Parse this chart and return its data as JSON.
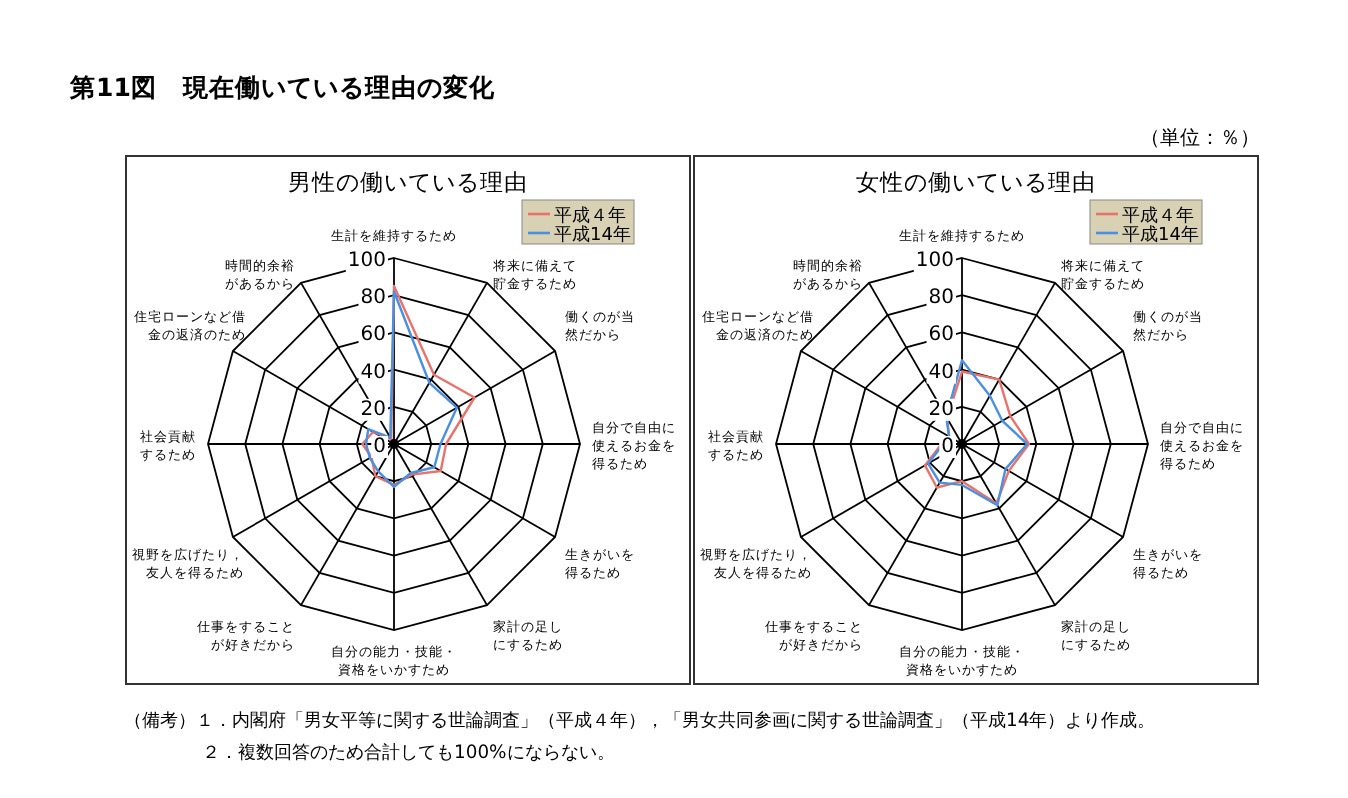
{
  "chart_data": [
    {
      "type": "radar",
      "title": "男性の働いている理由",
      "annotations": [
        "第11図　現在働いている理由の変化",
        "（単位：％）"
      ],
      "categories": [
        "生計を維持するため",
        "将来に備えて貯金するため",
        "働くのが当然だから",
        "自分で自由に使えるお金を得るため",
        "生きがいを得るため",
        "家計の足しにするため",
        "自分の能力・技能・資格をいかすため",
        "仕事をすることが好きだから",
        "視野を広げたり，友人を得るため",
        "社会貢献するため",
        "住宅ローンなど借金の返済のため",
        "時間的余裕があるから"
      ],
      "ylim": [
        0,
        100
      ],
      "yticks": [
        0,
        20,
        40,
        60,
        80,
        100
      ],
      "grid": true,
      "legend": "top right",
      "marker": "none",
      "series": [
        {
          "name": "平成４年",
          "color": "#e8736b",
          "values": [
            85,
            43,
            50,
            28,
            29,
            19,
            22,
            20,
            14,
            17,
            13,
            3
          ]
        },
        {
          "name": "平成14年",
          "color": "#4a8fe0",
          "values": [
            82,
            38,
            39,
            25,
            25,
            18,
            23,
            17,
            15,
            15,
            16,
            4
          ]
        }
      ]
    },
    {
      "type": "radar",
      "title": "女性の働いている理由",
      "annotations": [
        "（備考）１．内閣府「男女平等に関する世論調査」（平成４年），「男女共同参画に関する世論調査」（平成14年）より作成。",
        "２．複数回答のため合計しても100%にならない。"
      ],
      "categories": [
        "生計を維持するため",
        "将来に備えて貯金するため",
        "働くのが当然だから",
        "自分で自由に使えるお金を得るため",
        "生きがいを得るため",
        "家計の足しにするため",
        "自分の能力・技能・資格をいかすため",
        "仕事をすることが好きだから",
        "視野を広げたり，友人を得るため",
        "社会貢献するため",
        "住宅ローンなど借金の返済のため",
        "時間的余裕があるから"
      ],
      "ylim": [
        0,
        100
      ],
      "yticks": [
        0,
        20,
        40,
        60,
        80,
        100
      ],
      "grid": true,
      "legend": "top right",
      "marker": "none",
      "series": [
        {
          "name": "平成４年",
          "color": "#e8736b",
          "values": [
            39,
            40,
            30,
            36,
            29,
            37,
            20,
            27,
            23,
            11,
            8,
            16
          ]
        },
        {
          "name": "平成14年",
          "color": "#4a8fe0",
          "values": [
            45,
            30,
            25,
            35,
            27,
            38,
            22,
            24,
            21,
            10,
            8,
            17
          ]
        }
      ]
    }
  ]
}
